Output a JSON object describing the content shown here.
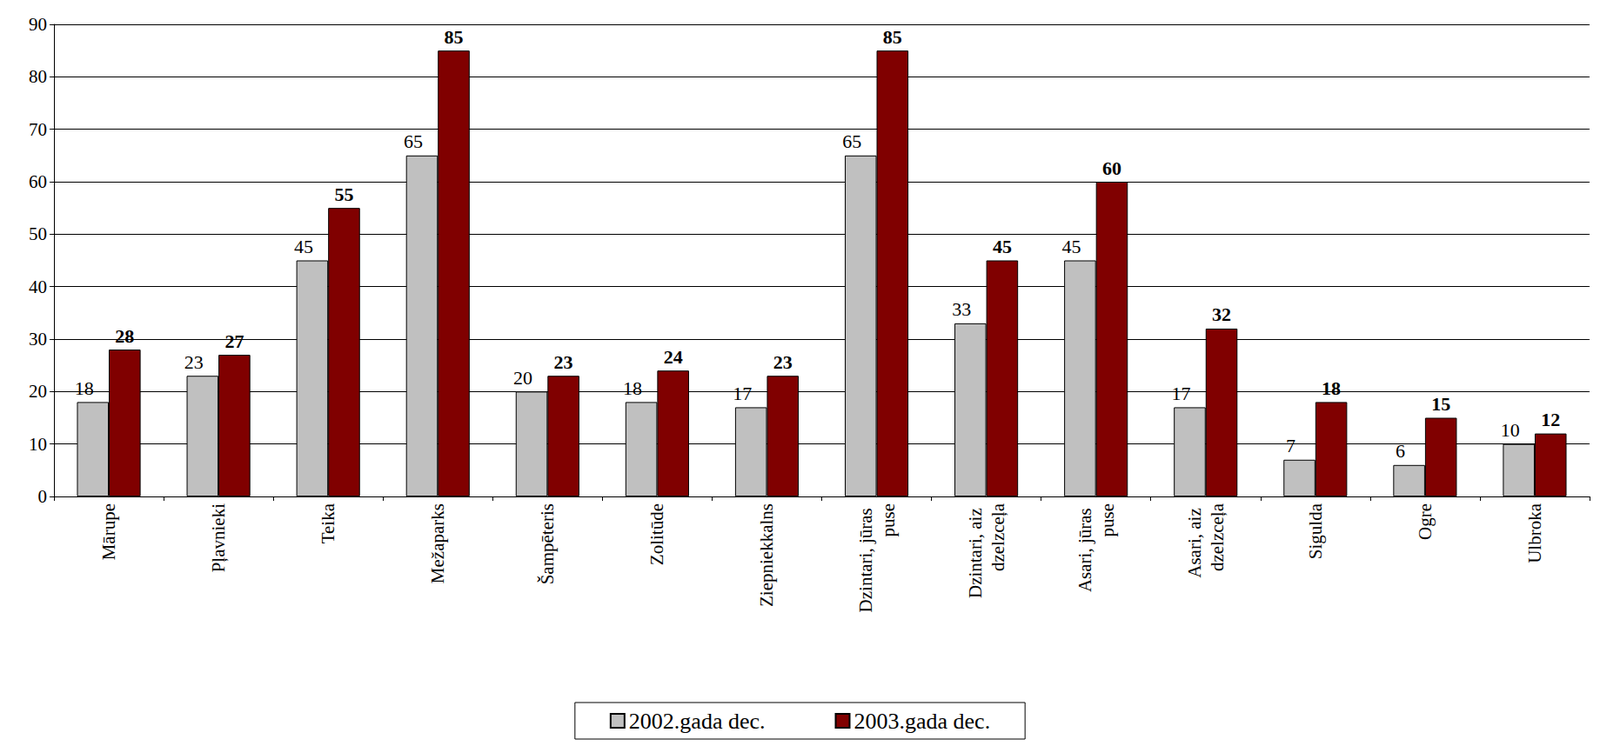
{
  "chart_data": {
    "type": "bar",
    "categories": [
      "Mārupe",
      "Pļavnieki",
      "Teika",
      "Mežaparks",
      "Šampēteris",
      "Zolitūde",
      "Ziepniekkalns",
      "Dzintari, jūras puse",
      "Dzintari, aiz dzelzceļa",
      "Asari, jūras puse",
      "Asari, aiz dzelzceļa",
      "Sigulda",
      "Ogre",
      "Ulbroka"
    ],
    "series": [
      {
        "name": "2002.gada dec.",
        "color": "#c0c0c0",
        "values": [
          18,
          23,
          45,
          65,
          20,
          18,
          17,
          65,
          33,
          45,
          17,
          7,
          6,
          10
        ]
      },
      {
        "name": "2003.gada dec.",
        "color": "#800000",
        "values": [
          28,
          27,
          55,
          85,
          23,
          24,
          23,
          85,
          45,
          60,
          32,
          18,
          15,
          12
        ]
      }
    ],
    "ylim": [
      0,
      90
    ],
    "yticks": [
      0,
      10,
      20,
      30,
      40,
      50,
      60,
      70,
      80,
      90
    ],
    "grid": true,
    "legend": "bottom",
    "data_labels": true
  }
}
